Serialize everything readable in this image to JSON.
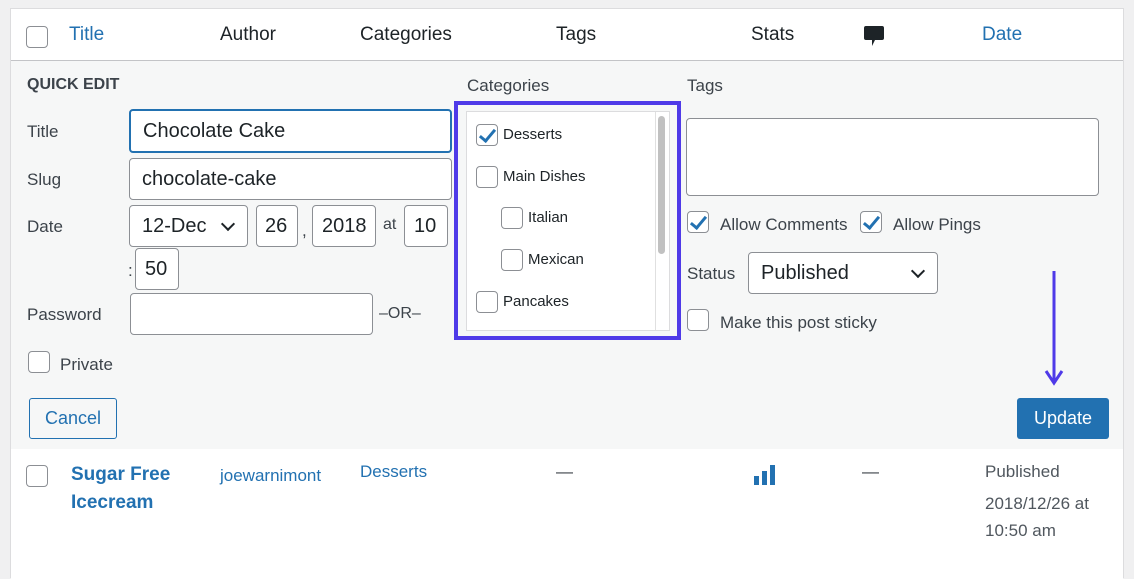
{
  "header": {
    "columns": {
      "title": "Title",
      "author": "Author",
      "categories": "Categories",
      "tags": "Tags",
      "stats": "Stats",
      "comments_icon": "comment-bubble-icon",
      "date": "Date"
    }
  },
  "quick_edit": {
    "heading": "QUICK EDIT",
    "title_label": "Title",
    "title_value": "Chocolate Cake",
    "slug_label": "Slug",
    "slug_value": "chocolate-cake",
    "date_label": "Date",
    "month": "12-Dec",
    "day": "26",
    "year": "2018",
    "at": "at",
    "hour": "10",
    "colon": ":",
    "minute": "50",
    "comma": ",",
    "password_label": "Password",
    "password_value": "",
    "or": "–OR–",
    "private_label": "Private",
    "private_checked": false,
    "categories_label": "Categories",
    "categories": [
      {
        "label": "Desserts",
        "checked": true
      },
      {
        "label": "Main Dishes",
        "checked": false
      },
      {
        "label": "Italian",
        "checked": false
      },
      {
        "label": "Mexican",
        "checked": false
      },
      {
        "label": "Pancakes",
        "checked": false
      }
    ],
    "tags_label": "Tags",
    "tags_value": "",
    "allow_comments": "Allow Comments",
    "allow_comments_checked": true,
    "allow_pings": "Allow Pings",
    "allow_pings_checked": true,
    "status_label": "Status",
    "status_value": "Published",
    "sticky_label": "Make this post sticky",
    "sticky_checked": false,
    "cancel": "Cancel",
    "update": "Update"
  },
  "row": {
    "title": "Sugar Free Icecream",
    "author": "joewarnimont",
    "categories": "Desserts",
    "tags": "—",
    "stats_icon": "bar-chart-icon",
    "comments": "—",
    "date_status": "Published",
    "date_value": "2018/12/26 at 10:50 am"
  },
  "colors": {
    "accent": "#2271b1",
    "highlight": "#4f3ae8"
  }
}
